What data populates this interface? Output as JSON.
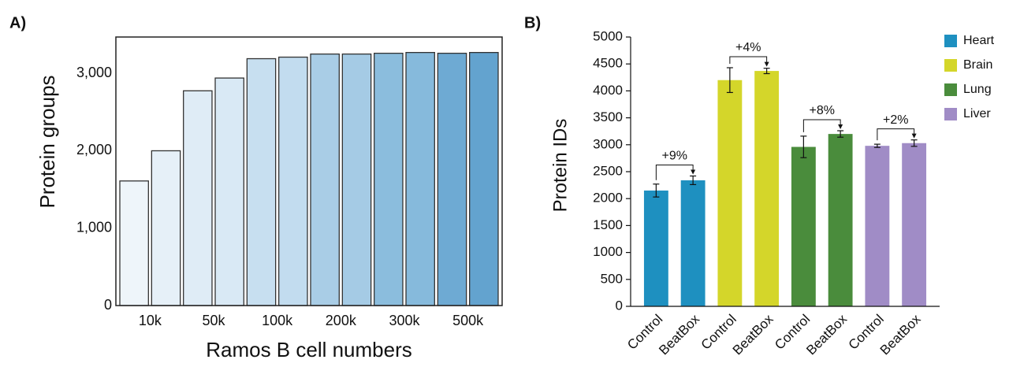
{
  "chart_data": [
    {
      "type": "bar",
      "panel_label": "A)",
      "y_label": "Protein groups",
      "x_label": "Ramos B cell numbers",
      "categories": [
        "10k",
        "50k",
        "100k",
        "200k",
        "300k",
        "500k"
      ],
      "series": [
        {
          "colors": [
            "#eef5fa",
            "#dfecf6",
            "#c7dff0",
            "#a9cde6",
            "#8bbddd",
            "#6eaad3"
          ],
          "values": [
            1610,
            2775,
            3190,
            3250,
            3260,
            3260
          ]
        },
        {
          "colors": [
            "#e6f0f8",
            "#d9e9f5",
            "#c2dcef",
            "#a5cbe5",
            "#86badc",
            "#63a3cf"
          ],
          "values": [
            2000,
            2940,
            3210,
            3250,
            3270,
            3270
          ]
        }
      ],
      "ylim": [
        0,
        3470
      ],
      "yticks": [
        0,
        {
          "value": 1000,
          "label": "1,000"
        },
        {
          "value": 2000,
          "label": "2,000"
        },
        {
          "value": 3000,
          "label": "3,000"
        }
      ],
      "frame": true
    },
    {
      "type": "bar",
      "panel_label": "B)",
      "y_label": "Protein IDs",
      "series": [
        {
          "name": "Heart",
          "color": "#1e90c0",
          "categories": [
            "Control",
            "BeatBox"
          ],
          "values": [
            2150,
            2340
          ],
          "errors": [
            120,
            80
          ],
          "annotation": "+9%"
        },
        {
          "name": "Brain",
          "color": "#d4d62a",
          "categories": [
            "Control",
            "BeatBox"
          ],
          "values": [
            4200,
            4370
          ],
          "errors": [
            230,
            50
          ],
          "annotation": "+4%"
        },
        {
          "name": "Lung",
          "color": "#4a8c3c",
          "categories": [
            "Control",
            "BeatBox"
          ],
          "values": [
            2960,
            3200
          ],
          "errors": [
            200,
            60
          ],
          "annotation": "+8%"
        },
        {
          "name": "Liver",
          "color": "#a08cc6",
          "categories": [
            "Control",
            "BeatBox"
          ],
          "values": [
            2980,
            3030
          ],
          "errors": [
            30,
            60
          ],
          "annotation": "+2%"
        }
      ],
      "ylim": [
        0,
        5000
      ],
      "yticks": [
        0,
        500,
        1000,
        1500,
        2000,
        2500,
        3000,
        3500,
        4000,
        4500,
        5000
      ],
      "legend": "right"
    }
  ]
}
